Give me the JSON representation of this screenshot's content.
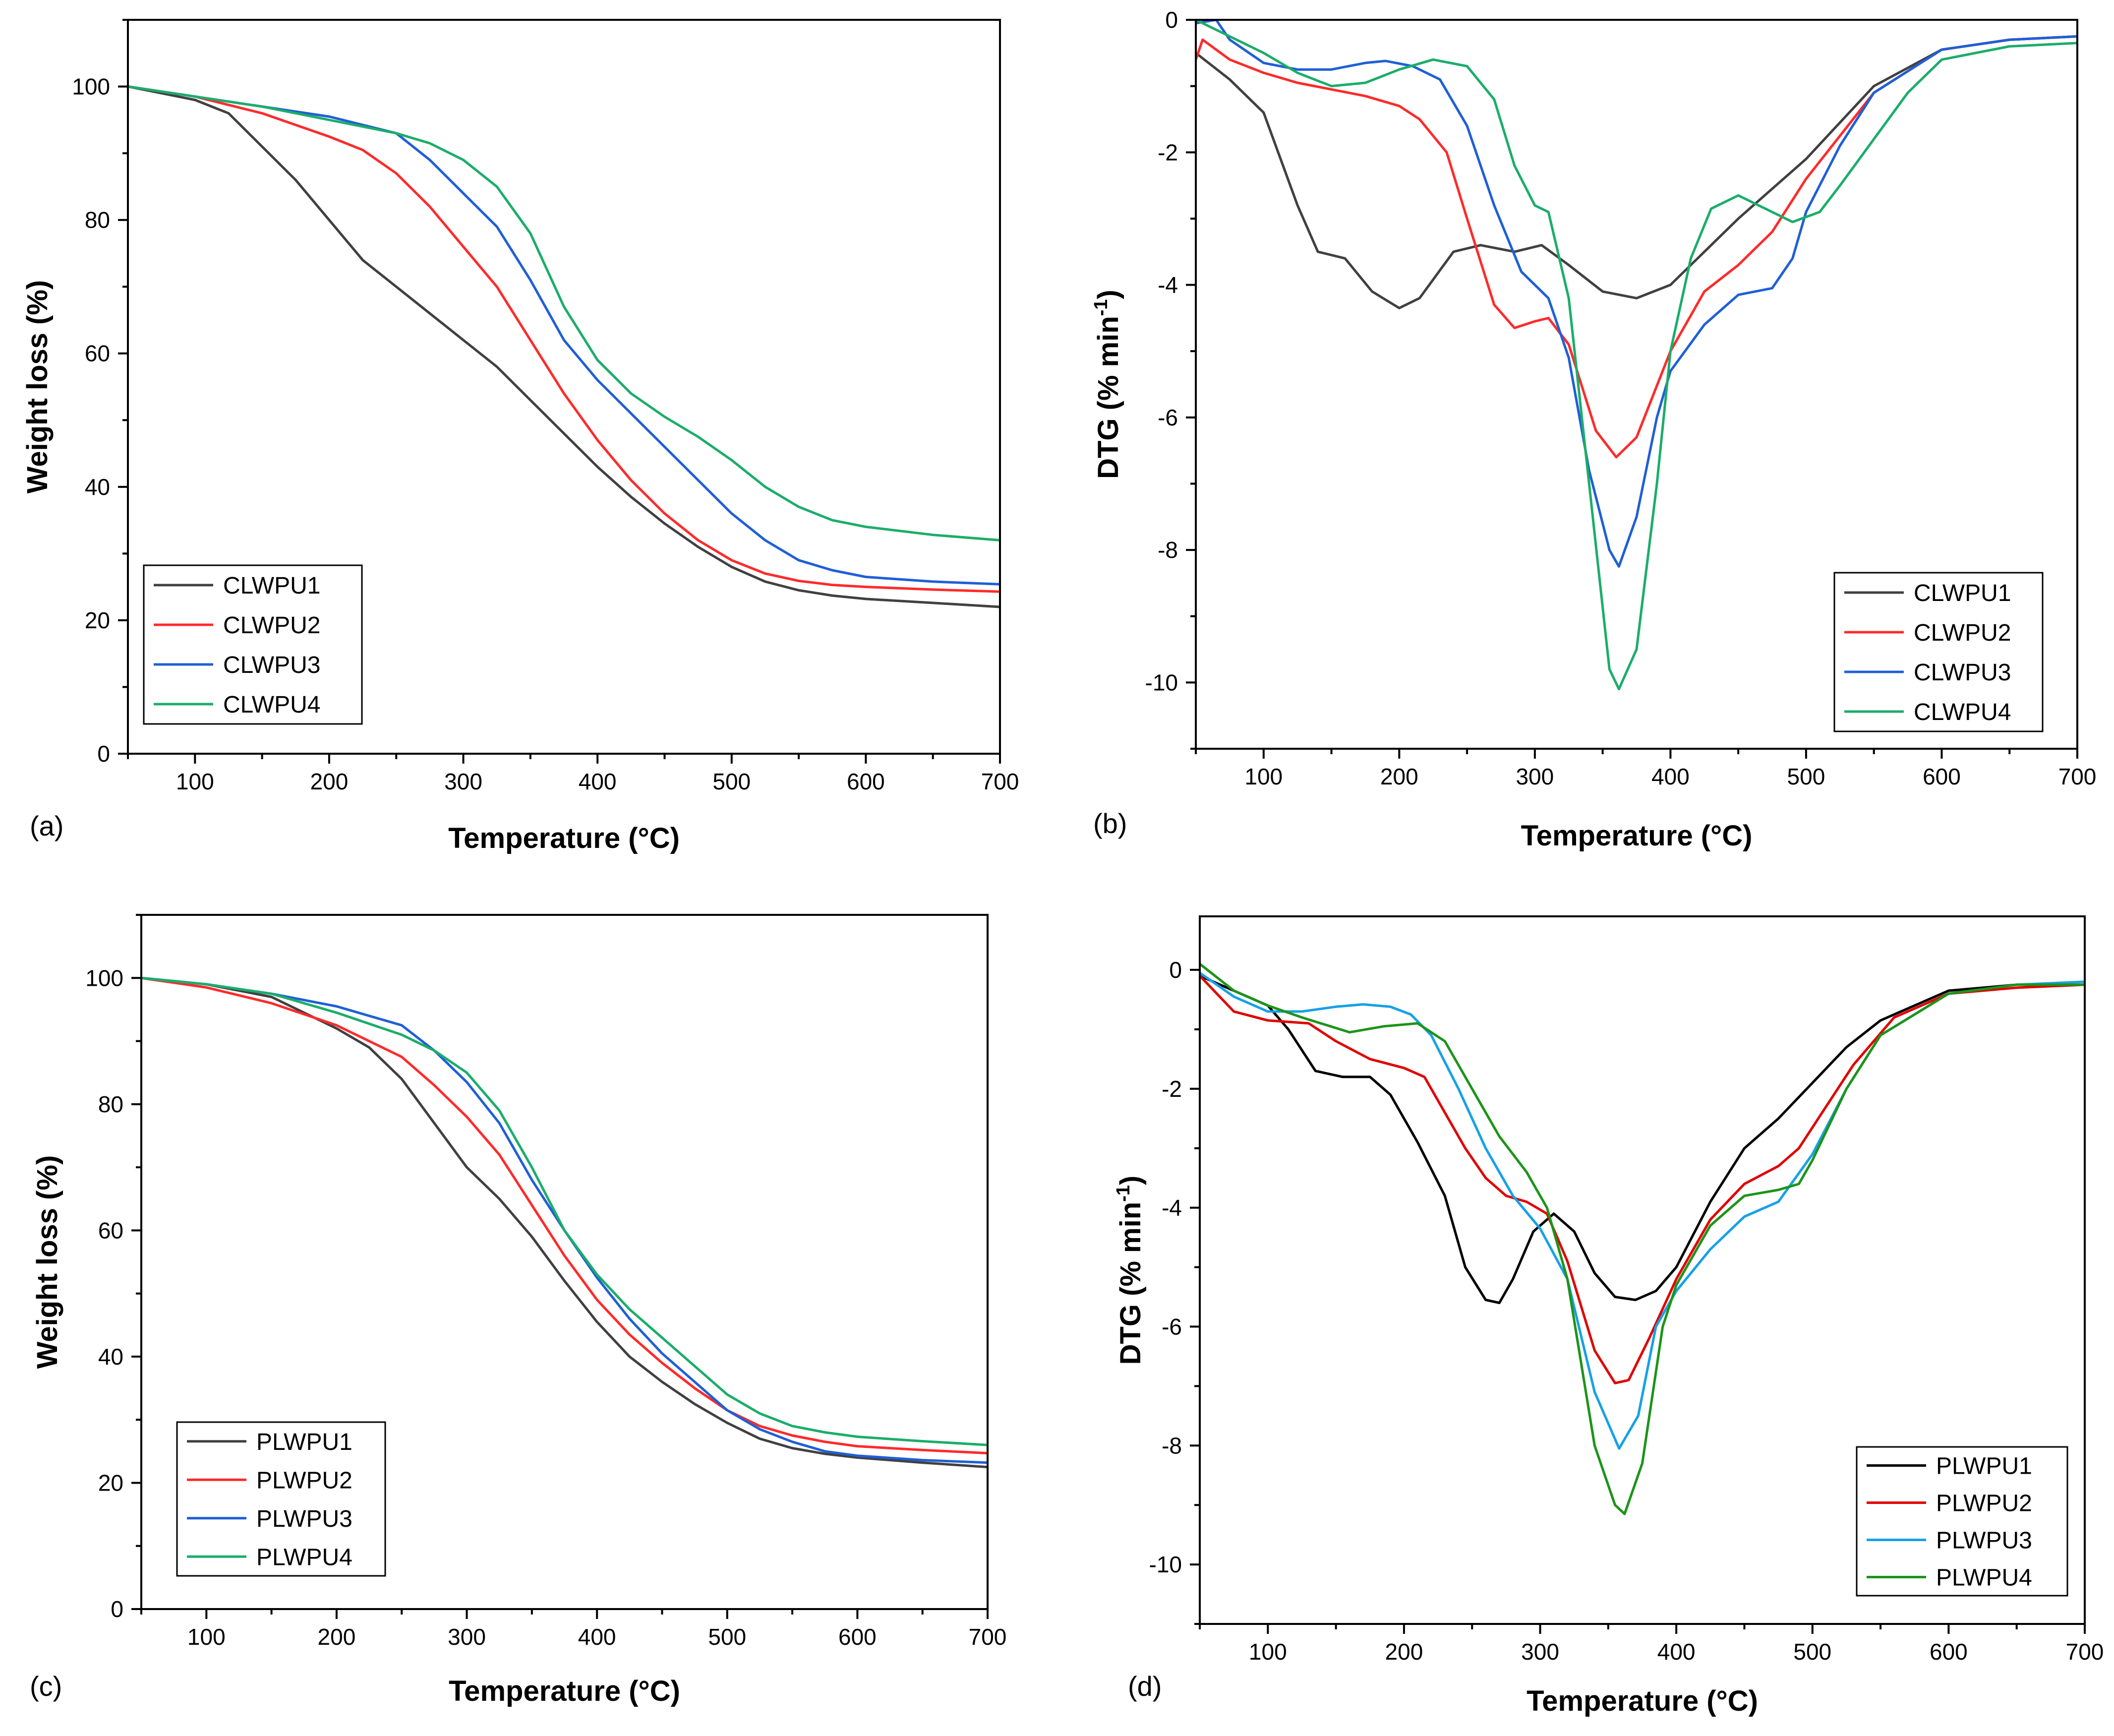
{
  "chart_data": [
    {
      "panel_label": "(a)",
      "type": "line",
      "xlabel": "Temperature (°C)",
      "ylabel": "Weight loss (%)",
      "xlim": [
        50,
        700
      ],
      "ylim": [
        0,
        110
      ],
      "xticks": [
        100,
        200,
        300,
        400,
        500,
        600,
        700
      ],
      "yticks": [
        0,
        20,
        40,
        60,
        80,
        100
      ],
      "legend_position": "bottom-left",
      "series": [
        {
          "name": "CLWPU1",
          "color": "#404040",
          "x": [
            50,
            100,
            125,
            150,
            175,
            200,
            225,
            250,
            275,
            300,
            325,
            350,
            375,
            400,
            425,
            450,
            475,
            500,
            525,
            550,
            575,
            600,
            650,
            700
          ],
          "y": [
            100,
            98,
            96,
            91,
            86,
            80,
            74,
            70,
            66,
            62,
            58,
            53,
            48,
            43,
            38.5,
            34.5,
            31,
            28,
            25.8,
            24.5,
            23.7,
            23.2,
            22.6,
            22
          ]
        },
        {
          "name": "CLWPU2",
          "color": "#ff2a2a",
          "x": [
            50,
            100,
            150,
            200,
            225,
            250,
            275,
            300,
            325,
            350,
            375,
            400,
            425,
            450,
            475,
            500,
            525,
            550,
            575,
            600,
            650,
            700
          ],
          "y": [
            100,
            98.5,
            96,
            92.5,
            90.5,
            87,
            82,
            76,
            70,
            62,
            54,
            47,
            41,
            36,
            32,
            29,
            27,
            25.9,
            25.3,
            25,
            24.6,
            24.3
          ]
        },
        {
          "name": "CLWPU3",
          "color": "#1f5fd6",
          "x": [
            50,
            100,
            150,
            200,
            250,
            275,
            300,
            325,
            350,
            375,
            400,
            425,
            450,
            475,
            500,
            525,
            550,
            575,
            600,
            650,
            700
          ],
          "y": [
            100,
            98.5,
            97,
            95.5,
            93,
            89,
            84,
            79,
            71,
            62,
            56,
            51,
            46,
            41,
            36,
            32,
            29,
            27.5,
            26.5,
            25.8,
            25.4
          ]
        },
        {
          "name": "CLWPU4",
          "color": "#1bad6a",
          "x": [
            50,
            100,
            150,
            200,
            250,
            275,
            300,
            325,
            350,
            375,
            400,
            425,
            450,
            475,
            500,
            525,
            550,
            575,
            600,
            650,
            700
          ],
          "y": [
            100,
            98.5,
            97,
            95,
            93,
            91.5,
            89,
            85,
            78,
            67,
            59,
            54,
            50.5,
            47.5,
            44,
            40,
            37,
            35,
            34,
            32.8,
            32
          ]
        }
      ]
    },
    {
      "panel_label": "(b)",
      "type": "line",
      "xlabel": "Temperature (°C)",
      "ylabel": "DTG (% min⁻¹)",
      "xlim": [
        50,
        700
      ],
      "ylim": [
        -11,
        0
      ],
      "xticks": [
        100,
        200,
        300,
        400,
        500,
        600,
        700
      ],
      "yticks": [
        0,
        -2,
        -4,
        -6,
        -8,
        -10
      ],
      "legend_position": "bottom-right",
      "series": [
        {
          "name": "CLWPU1",
          "color": "#404040",
          "x": [
            50,
            75,
            100,
            125,
            140,
            160,
            180,
            200,
            215,
            240,
            260,
            285,
            305,
            325,
            350,
            375,
            400,
            425,
            450,
            500,
            550,
            600,
            650,
            700
          ],
          "y": [
            -0.5,
            -0.9,
            -1.4,
            -2.8,
            -3.5,
            -3.6,
            -4.1,
            -4.35,
            -4.2,
            -3.5,
            -3.4,
            -3.5,
            -3.4,
            -3.7,
            -4.1,
            -4.2,
            -4.0,
            -3.5,
            -3.0,
            -2.1,
            -1.0,
            -0.45,
            -0.3,
            -0.25
          ]
        },
        {
          "name": "CLWPU2",
          "color": "#ff2a2a",
          "x": [
            50,
            55,
            75,
            100,
            125,
            150,
            175,
            200,
            215,
            235,
            250,
            270,
            285,
            300,
            310,
            325,
            345,
            360,
            375,
            400,
            425,
            450,
            475,
            500,
            550,
            600,
            650,
            700
          ],
          "y": [
            -0.6,
            -0.3,
            -0.6,
            -0.8,
            -0.95,
            -1.05,
            -1.15,
            -1.3,
            -1.5,
            -2.0,
            -3.0,
            -4.3,
            -4.65,
            -4.55,
            -4.5,
            -4.9,
            -6.2,
            -6.6,
            -6.3,
            -5.0,
            -4.1,
            -3.7,
            -3.2,
            -2.4,
            -1.1,
            -0.45,
            -0.3,
            -0.25
          ]
        },
        {
          "name": "CLWPU3",
          "color": "#1f5fd6",
          "x": [
            50,
            65,
            75,
            100,
            125,
            150,
            175,
            190,
            210,
            230,
            250,
            270,
            290,
            310,
            325,
            340,
            355,
            362,
            375,
            390,
            400,
            425,
            450,
            475,
            490,
            500,
            525,
            550,
            600,
            650,
            700
          ],
          "y": [
            -0.05,
            0.0,
            -0.3,
            -0.65,
            -0.75,
            -0.75,
            -0.65,
            -0.62,
            -0.7,
            -0.9,
            -1.6,
            -2.8,
            -3.8,
            -4.2,
            -5.1,
            -6.8,
            -8.0,
            -8.25,
            -7.5,
            -6.0,
            -5.3,
            -4.6,
            -4.15,
            -4.05,
            -3.6,
            -2.9,
            -1.9,
            -1.1,
            -0.45,
            -0.3,
            -0.25
          ]
        },
        {
          "name": "CLWPU4",
          "color": "#1bad6a",
          "x": [
            50,
            100,
            125,
            150,
            175,
            200,
            225,
            250,
            270,
            285,
            300,
            310,
            325,
            340,
            355,
            362,
            375,
            390,
            400,
            415,
            430,
            450,
            470,
            490,
            510,
            525,
            550,
            575,
            600,
            650,
            700
          ],
          "y": [
            0.0,
            -0.5,
            -0.8,
            -1.0,
            -0.95,
            -0.75,
            -0.6,
            -0.7,
            -1.2,
            -2.2,
            -2.8,
            -2.9,
            -4.2,
            -7.0,
            -9.8,
            -10.1,
            -9.5,
            -7.0,
            -5.0,
            -3.6,
            -2.85,
            -2.65,
            -2.85,
            -3.05,
            -2.9,
            -2.5,
            -1.8,
            -1.1,
            -0.6,
            -0.4,
            -0.35
          ]
        }
      ]
    },
    {
      "panel_label": "(c)",
      "type": "line",
      "xlabel": "Temperature (°C)",
      "ylabel": "Weight loss (%)",
      "xlim": [
        50,
        700
      ],
      "ylim": [
        0,
        110
      ],
      "xticks": [
        100,
        200,
        300,
        400,
        500,
        600,
        700
      ],
      "yticks": [
        0,
        20,
        40,
        60,
        80,
        100
      ],
      "legend_position": "bottom-left",
      "series": [
        {
          "name": "PLWPU1",
          "color": "#404040",
          "x": [
            50,
            100,
            150,
            200,
            225,
            250,
            275,
            300,
            325,
            350,
            375,
            400,
            425,
            450,
            475,
            500,
            525,
            550,
            575,
            600,
            650,
            700
          ],
          "y": [
            100,
            99,
            97,
            92,
            89,
            84,
            77,
            70,
            65,
            59,
            52,
            45.5,
            40,
            36,
            32.5,
            29.5,
            27,
            25.5,
            24.6,
            24,
            23.2,
            22.5
          ]
        },
        {
          "name": "PLWPU2",
          "color": "#ff2a2a",
          "x": [
            50,
            100,
            150,
            200,
            250,
            275,
            300,
            325,
            350,
            375,
            400,
            425,
            450,
            475,
            500,
            525,
            550,
            575,
            600,
            650,
            700
          ],
          "y": [
            100,
            98.5,
            96,
            92.5,
            87.5,
            83,
            78,
            72,
            64,
            56,
            49,
            43.5,
            39,
            35,
            31.5,
            29,
            27.5,
            26.5,
            25.8,
            25.2,
            24.7
          ]
        },
        {
          "name": "PLWPU3",
          "color": "#1f5fd6",
          "x": [
            50,
            100,
            150,
            200,
            250,
            275,
            300,
            325,
            350,
            375,
            400,
            425,
            450,
            475,
            500,
            525,
            550,
            575,
            600,
            650,
            700
          ],
          "y": [
            100,
            99,
            97.5,
            95.5,
            92.5,
            88.5,
            83.5,
            77,
            68,
            60,
            52.5,
            46,
            40.5,
            36,
            31.5,
            28.5,
            26.5,
            25,
            24.3,
            23.6,
            23.2
          ]
        },
        {
          "name": "PLWPU4",
          "color": "#1bad6a",
          "x": [
            50,
            100,
            150,
            200,
            250,
            275,
            300,
            325,
            350,
            375,
            400,
            425,
            450,
            475,
            500,
            525,
            550,
            575,
            600,
            650,
            700
          ],
          "y": [
            100,
            99,
            97.5,
            94.5,
            91,
            88.5,
            85,
            79,
            70,
            60,
            53,
            47.5,
            43,
            38.5,
            34,
            31,
            29,
            28,
            27.3,
            26.6,
            26
          ]
        }
      ]
    },
    {
      "panel_label": "(d)",
      "type": "line",
      "xlabel": "Temperature (°C)",
      "ylabel": "DTG (% min⁻¹)",
      "xlim": [
        50,
        700
      ],
      "ylim": [
        -11,
        0.9
      ],
      "xticks": [
        100,
        200,
        300,
        400,
        500,
        600,
        700
      ],
      "yticks": [
        0,
        -2,
        -4,
        -6,
        -8,
        -10
      ],
      "legend_position": "bottom-right",
      "series": [
        {
          "name": "PLWPU1",
          "color": "#000000",
          "x": [
            50,
            75,
            100,
            115,
            135,
            155,
            175,
            190,
            210,
            230,
            245,
            260,
            270,
            280,
            295,
            310,
            325,
            340,
            355,
            370,
            385,
            400,
            425,
            450,
            475,
            500,
            525,
            550,
            600,
            650,
            700
          ],
          "y": [
            -0.1,
            -0.35,
            -0.6,
            -1.0,
            -1.7,
            -1.8,
            -1.8,
            -2.1,
            -2.9,
            -3.8,
            -5.0,
            -5.55,
            -5.6,
            -5.2,
            -4.4,
            -4.1,
            -4.4,
            -5.1,
            -5.5,
            -5.55,
            -5.4,
            -5.0,
            -3.9,
            -3.0,
            -2.5,
            -1.9,
            -1.3,
            -0.85,
            -0.35,
            -0.25,
            -0.25
          ]
        },
        {
          "name": "PLWPU2",
          "color": "#e00000",
          "x": [
            50,
            75,
            100,
            130,
            150,
            175,
            200,
            215,
            230,
            245,
            260,
            275,
            290,
            305,
            320,
            340,
            355,
            365,
            380,
            400,
            425,
            450,
            475,
            490,
            510,
            530,
            560,
            600,
            650,
            700
          ],
          "y": [
            -0.1,
            -0.7,
            -0.85,
            -0.9,
            -1.2,
            -1.5,
            -1.65,
            -1.8,
            -2.4,
            -3.0,
            -3.5,
            -3.8,
            -3.9,
            -4.1,
            -4.9,
            -6.4,
            -6.95,
            -6.9,
            -6.2,
            -5.2,
            -4.2,
            -3.6,
            -3.3,
            -3.0,
            -2.3,
            -1.6,
            -0.8,
            -0.4,
            -0.3,
            -0.25
          ]
        },
        {
          "name": "PLWPU3",
          "color": "#16a1e6",
          "x": [
            50,
            75,
            100,
            125,
            150,
            170,
            190,
            205,
            220,
            240,
            260,
            280,
            300,
            320,
            340,
            358,
            372,
            385,
            400,
            425,
            450,
            475,
            500,
            525,
            550,
            600,
            650,
            700
          ],
          "y": [
            -0.05,
            -0.45,
            -0.7,
            -0.7,
            -0.62,
            -0.58,
            -0.62,
            -0.75,
            -1.1,
            -2.0,
            -3.0,
            -3.8,
            -4.35,
            -5.2,
            -7.1,
            -8.05,
            -7.5,
            -6.0,
            -5.4,
            -4.7,
            -4.15,
            -3.9,
            -3.1,
            -2.0,
            -1.1,
            -0.4,
            -0.25,
            -0.2
          ]
        },
        {
          "name": "PLWPU4",
          "color": "#1c9419",
          "x": [
            50,
            75,
            100,
            125,
            160,
            185,
            210,
            230,
            250,
            270,
            290,
            305,
            320,
            340,
            355,
            362,
            375,
            390,
            400,
            425,
            450,
            475,
            490,
            500,
            525,
            550,
            600,
            650,
            700
          ],
          "y": [
            0.1,
            -0.35,
            -0.6,
            -0.8,
            -1.05,
            -0.95,
            -0.9,
            -1.2,
            -2.0,
            -2.8,
            -3.4,
            -4.0,
            -5.2,
            -8.0,
            -9.0,
            -9.15,
            -8.3,
            -6.0,
            -5.3,
            -4.3,
            -3.8,
            -3.7,
            -3.6,
            -3.2,
            -2.0,
            -1.1,
            -0.4,
            -0.25,
            -0.25
          ]
        }
      ]
    }
  ]
}
